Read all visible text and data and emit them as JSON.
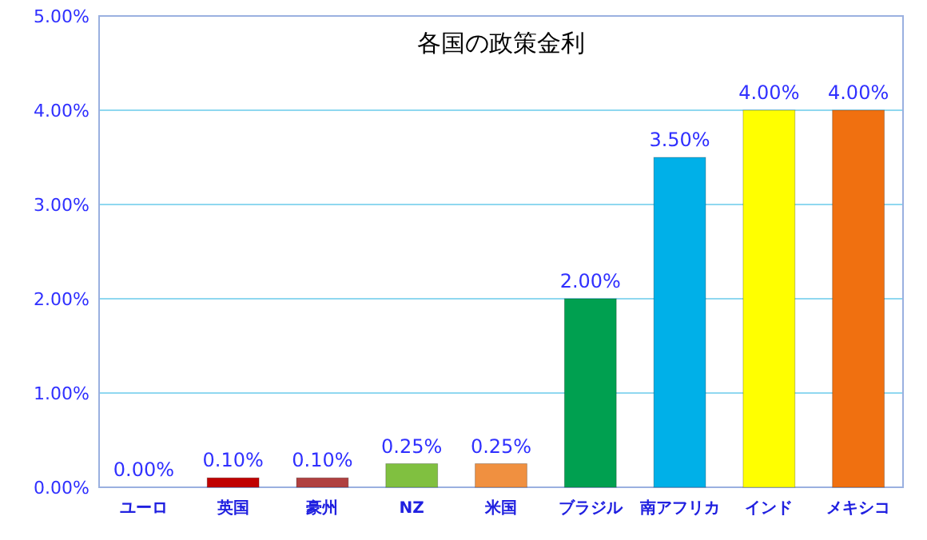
{
  "chart_data": {
    "type": "bar",
    "title": "各国の政策金利",
    "categories": [
      "ユーロ",
      "英国",
      "豪州",
      "NZ",
      "米国",
      "ブラジル",
      "南アフリカ",
      "インド",
      "メキシコ"
    ],
    "values": [
      0,
      0.1,
      0.1,
      0.25,
      0.25,
      2,
      3.5,
      4,
      4
    ],
    "value_labels": [
      "0.00%",
      "0.10%",
      "0.10%",
      "0.25%",
      "0.25%",
      "2.00%",
      "3.50%",
      "4.00%",
      "4.00%"
    ],
    "colors": [
      "#1f3a8a",
      "#c00000",
      "#b04040",
      "#80c040",
      "#f09040",
      "#00a050",
      "#00b0e8",
      "#ffff00",
      "#f07010"
    ],
    "ylim": [
      0,
      5
    ],
    "yticks": [
      {
        "value": 0,
        "label": "0.00%"
      },
      {
        "value": 1,
        "label": "1.00%"
      },
      {
        "value": 2,
        "label": "2.00%"
      },
      {
        "value": 3,
        "label": "3.00%"
      },
      {
        "value": 4,
        "label": "4.00%"
      },
      {
        "value": 5,
        "label": "5.00%"
      }
    ],
    "grid": "y"
  }
}
